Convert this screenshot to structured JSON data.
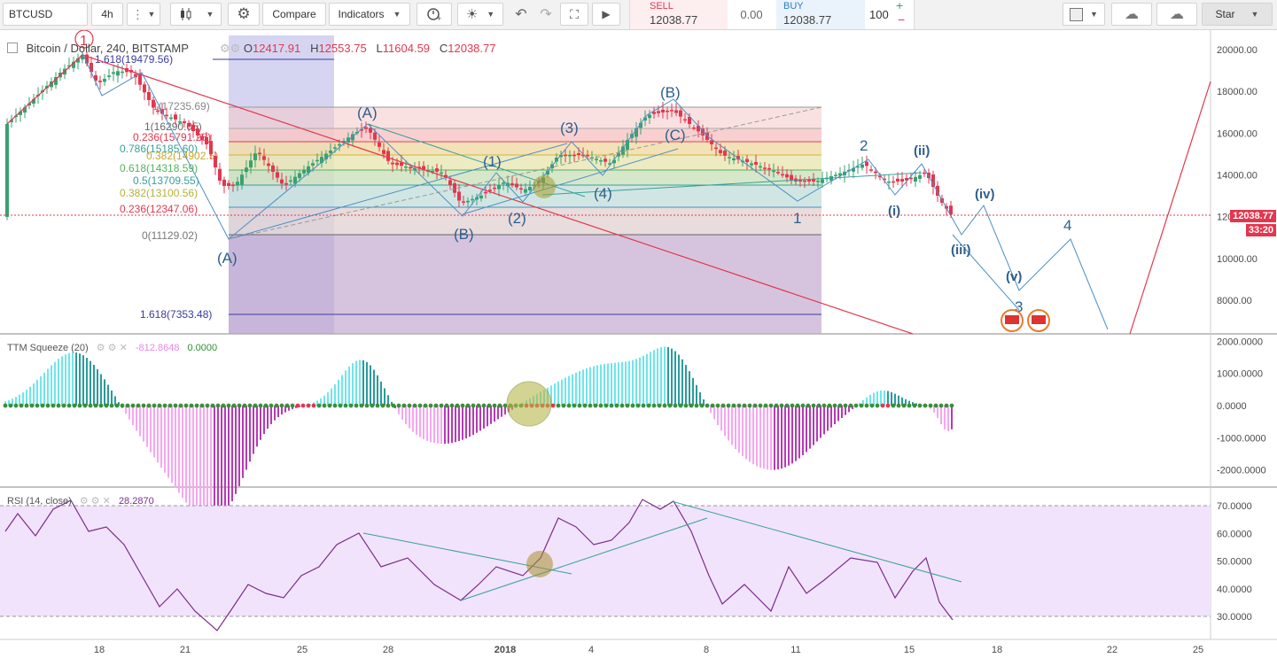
{
  "toolbar": {
    "symbol": "BTCUSD",
    "interval": "4h",
    "compare": "Compare",
    "indicators": "Indicators",
    "sell_label": "SELL",
    "sell_price": "12038.77",
    "spread": "0.00",
    "buy_label": "BUY",
    "buy_price": "12038.77",
    "quantity": "100",
    "star_label": "Star"
  },
  "legend": {
    "title": "Bitcoin / Dollar, 240, BITSTAMP",
    "o_label": "O",
    "o": "12417.91",
    "h_label": "H",
    "h": "12553.75",
    "l_label": "L",
    "l": "11604.59",
    "c_label": "C",
    "c": "12038.77"
  },
  "price_axis": [
    "20000.00",
    "18000.00",
    "16000.00",
    "14000.00",
    "12000.00",
    "10000.00",
    "8000.00"
  ],
  "last_price": "12038.77",
  "countdown": "33:20",
  "date_axis": [
    "18",
    "21",
    "25",
    "28",
    "2018",
    "4",
    "8",
    "11",
    "15",
    "18",
    "22",
    "25"
  ],
  "fib_labels": {
    "f1618_top": "1.618(19479.56)",
    "f1_top": "1(17235.69)",
    "f1_mid": "1(16290.05)",
    "f0236_a": "0.236(15791.28)",
    "f0786": "0.786(15185.60)",
    "f0382": "0.382(14902.5)",
    "f0618": "0.618(14318.59)",
    "f05": "0.5(13709.55)",
    "f0382b": "0.382(13100.56)",
    "f0236_b": "0.236(12347.06)",
    "f0": "0(11129.02)",
    "f1618_bot": "1.618(7353.48)"
  },
  "waves": {
    "one_top": "1",
    "A_low": "(A)",
    "A_high": "(A)",
    "B_low": "(B)",
    "B_high": "(B)",
    "C": "(C)",
    "w1": "(1)",
    "w2": "(2)",
    "w3": "(3)",
    "w4": "(4)",
    "i1": "1",
    "i2": "2",
    "i3": "3",
    "i4": "4",
    "ii": "(ii)",
    "i": "(i)",
    "iii": "(iii)",
    "iv": "(iv)",
    "v": "(v)"
  },
  "ttm": {
    "title": "TTM Squeeze (20)",
    "value1": "-812.8648",
    "value2": "0.0000",
    "axis": [
      "2000.0000",
      "1000.0000",
      "0.0000",
      "-1000.0000",
      "-2000.0000"
    ]
  },
  "rsi": {
    "title": "RSI (14, close)",
    "value": "28.2870",
    "axis": [
      "70.0000",
      "60.0000",
      "50.0000",
      "40.0000",
      "30.0000"
    ]
  },
  "colors": {
    "up": "#3aa16f",
    "down": "#e2374f",
    "fib_purple": "#7b7bd8",
    "trend_blue": "#4a8fc7",
    "rsi_line": "#7b2d8c",
    "rsi_band": "#f1e3fb"
  },
  "icons": [
    "candles-icon",
    "settings-icon",
    "alert-icon",
    "idea-icon",
    "undo-icon",
    "redo-icon",
    "fullscreen-icon",
    "play-icon",
    "cloud-load-icon",
    "cloud-save-icon",
    "chart-type-icon"
  ]
}
